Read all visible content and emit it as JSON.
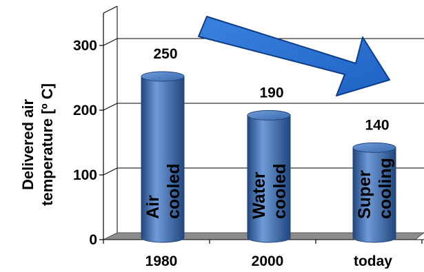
{
  "chart_data": {
    "type": "bar",
    "title": "",
    "xlabel": "",
    "ylabel": "Delivered air temperature [º C]",
    "ylabel_lines": [
      "Delivered air",
      "temperature [º C]"
    ],
    "ylim": [
      0,
      350
    ],
    "yticks": [
      0,
      100,
      200,
      300
    ],
    "grid": true,
    "categories": [
      "1980",
      "2000",
      "today"
    ],
    "values": [
      250,
      190,
      140
    ],
    "data_labels": [
      "250",
      "190",
      "140"
    ],
    "bar_labels": [
      [
        "Air",
        "cooled"
      ],
      [
        "Water",
        "cooled"
      ],
      [
        "Super",
        "cooling"
      ]
    ],
    "style": "3d-cylinder",
    "annotation": "downward-trend-arrow",
    "colors": {
      "bar_fill": "#3a6bb0",
      "bar_dark": "#22467c",
      "bar_light": "#6f9bd8",
      "arrow_fill": "#1f63c4",
      "arrow_edge": "#0d3d88",
      "floor": "#8c8c8c",
      "grid": "#000000",
      "text": "#000000"
    }
  }
}
